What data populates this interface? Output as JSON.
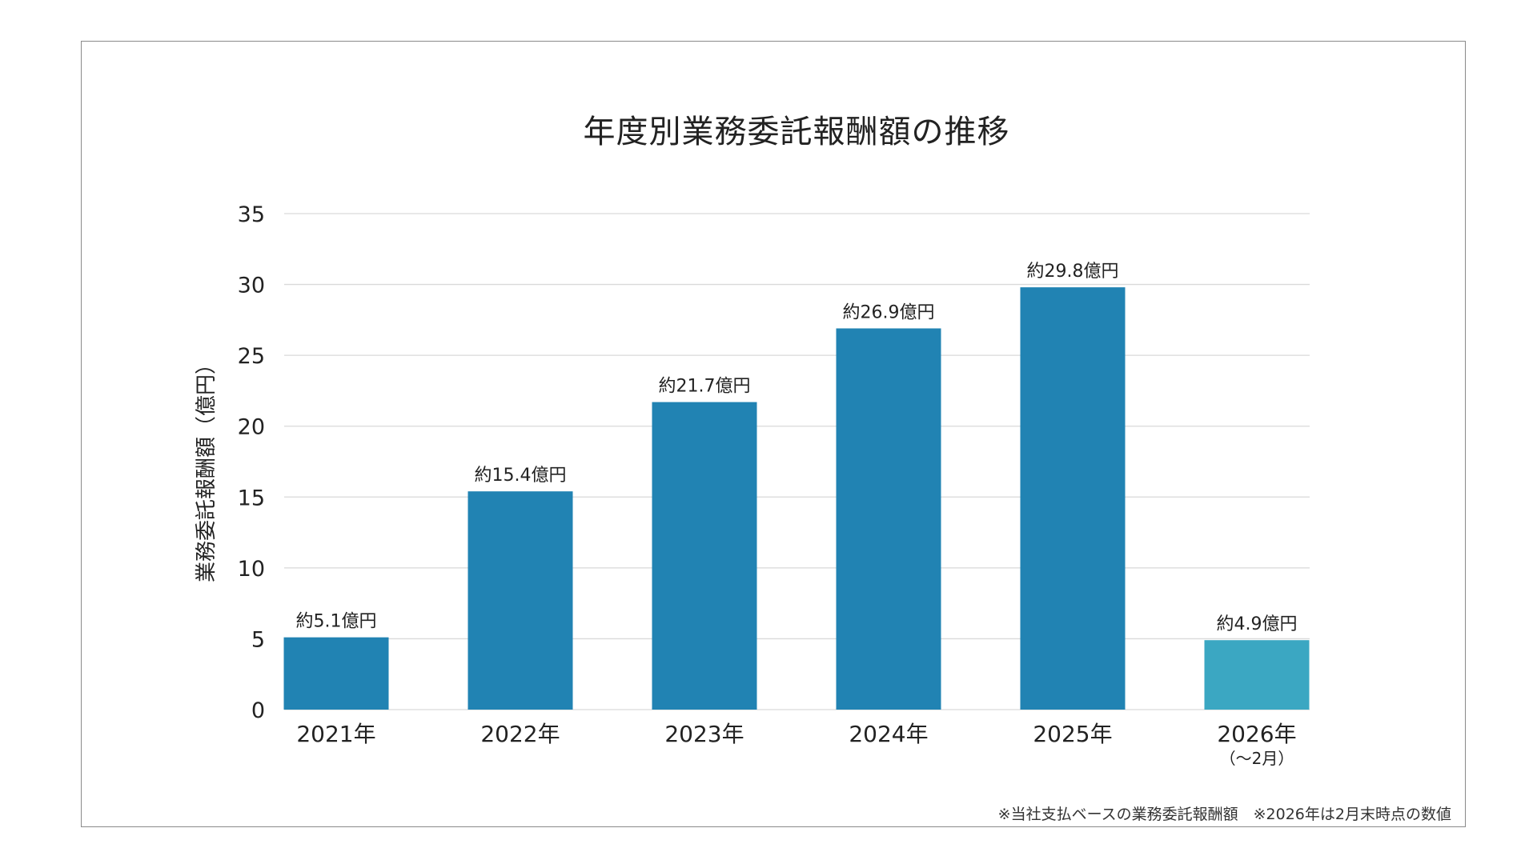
{
  "chart_data": {
    "type": "bar",
    "title": "年度別業務委託報酬額の推移",
    "ylabel": "業務委託報酬額（億円）",
    "xlabel": "",
    "ylim": [
      0,
      35
    ],
    "yticks": [
      0,
      5,
      10,
      15,
      20,
      25,
      30,
      35
    ],
    "grid": true,
    "categories": [
      "2021年",
      "2022年",
      "2023年",
      "2024年",
      "2025年",
      "2026年"
    ],
    "category_sublabels": [
      "",
      "",
      "",
      "",
      "",
      "（～2月）"
    ],
    "values": [
      5.1,
      15.4,
      21.7,
      26.9,
      29.8,
      4.9
    ],
    "data_labels": [
      "約5.1億円",
      "約15.4億円",
      "約21.7億円",
      "約26.9億円",
      "約29.8億円",
      "約4.9億円"
    ],
    "bar_colors": [
      "#2183b3",
      "#2183b3",
      "#2183b3",
      "#2183b3",
      "#2183b3",
      "#3ba7c2"
    ],
    "grid_color": "#d9d9d9"
  },
  "footnote": "※当社支払ベースの業務委託報酬額　※2026年は2月末時点の数値"
}
